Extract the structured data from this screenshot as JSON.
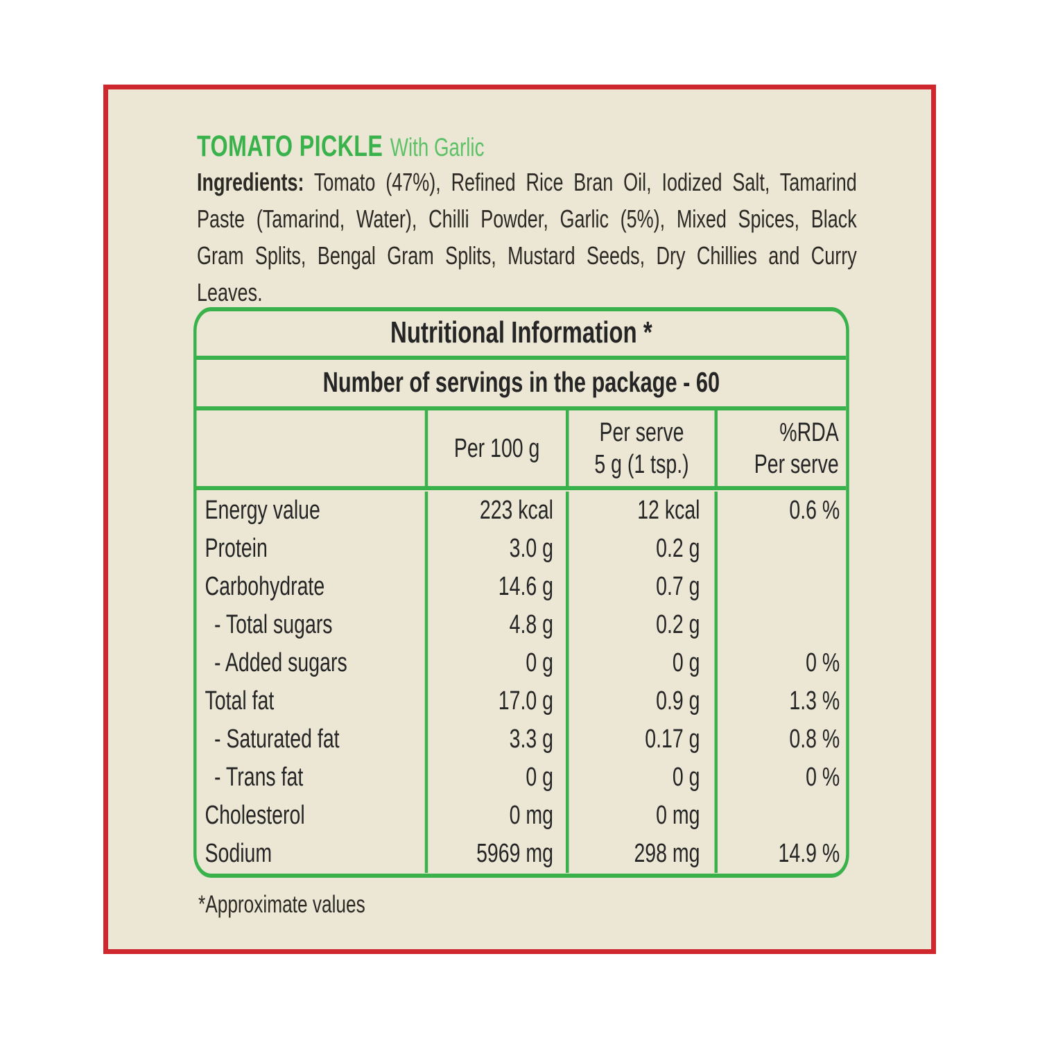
{
  "colors": {
    "frame_red": "#ce282e",
    "label_cream": "#ece7d5",
    "accent_green": "#3ab24c",
    "subtitle_green": "#5cc167",
    "text_dark": "#2b2924"
  },
  "product": {
    "title": "TOMATO PICKLE",
    "subtitle": "With Garlic"
  },
  "ingredients": {
    "label": "Ingredients:",
    "lines": [
      "Tomato (47%), Refined Rice Bran Oil, Iodized Salt, Tamarind",
      "Paste (Tamarind, Water), Chilli Powder, Garlic (5%), Mixed Spices, Black",
      "Gram Splits, Bengal Gram Splits, Mustard Seeds, Dry Chillies and Curry",
      "Leaves."
    ]
  },
  "nutrition_table": {
    "title": "Nutritional Information *",
    "servings_line": "Number of servings in the package - 60",
    "columns": {
      "per_100g": "Per 100 g",
      "per_serve_line1": "Per serve",
      "per_serve_line2": "5 g (1 tsp.)",
      "rda_line1": "%RDA",
      "rda_line2": "Per serve"
    },
    "rows": [
      {
        "label": "Energy value",
        "indent": false,
        "per_100g": "223 kcal",
        "per_serve": "12 kcal",
        "rda": "0.6 %"
      },
      {
        "label": "Protein",
        "indent": false,
        "per_100g": "3.0 g",
        "per_serve": "0.2 g",
        "rda": ""
      },
      {
        "label": "Carbohydrate",
        "indent": false,
        "per_100g": "14.6 g",
        "per_serve": "0.7 g",
        "rda": ""
      },
      {
        "label": "- Total sugars",
        "indent": true,
        "per_100g": "4.8 g",
        "per_serve": "0.2 g",
        "rda": ""
      },
      {
        "label": "- Added sugars",
        "indent": true,
        "per_100g": "0 g",
        "per_serve": "0 g",
        "rda": "0 %"
      },
      {
        "label": "Total fat",
        "indent": false,
        "per_100g": "17.0 g",
        "per_serve": "0.9 g",
        "rda": "1.3 %"
      },
      {
        "label": "- Saturated fat",
        "indent": true,
        "per_100g": "3.3 g",
        "per_serve": "0.17 g",
        "rda": "0.8 %"
      },
      {
        "label": "- Trans fat",
        "indent": true,
        "per_100g": "0 g",
        "per_serve": "0 g",
        "rda": "0 %"
      },
      {
        "label": "Cholesterol",
        "indent": false,
        "per_100g": "0 mg",
        "per_serve": "0 mg",
        "rda": ""
      },
      {
        "label": "Sodium",
        "indent": false,
        "per_100g": "5969 mg",
        "per_serve": "298 mg",
        "rda": "14.9 %"
      }
    ]
  },
  "footnote": "*Approximate values"
}
